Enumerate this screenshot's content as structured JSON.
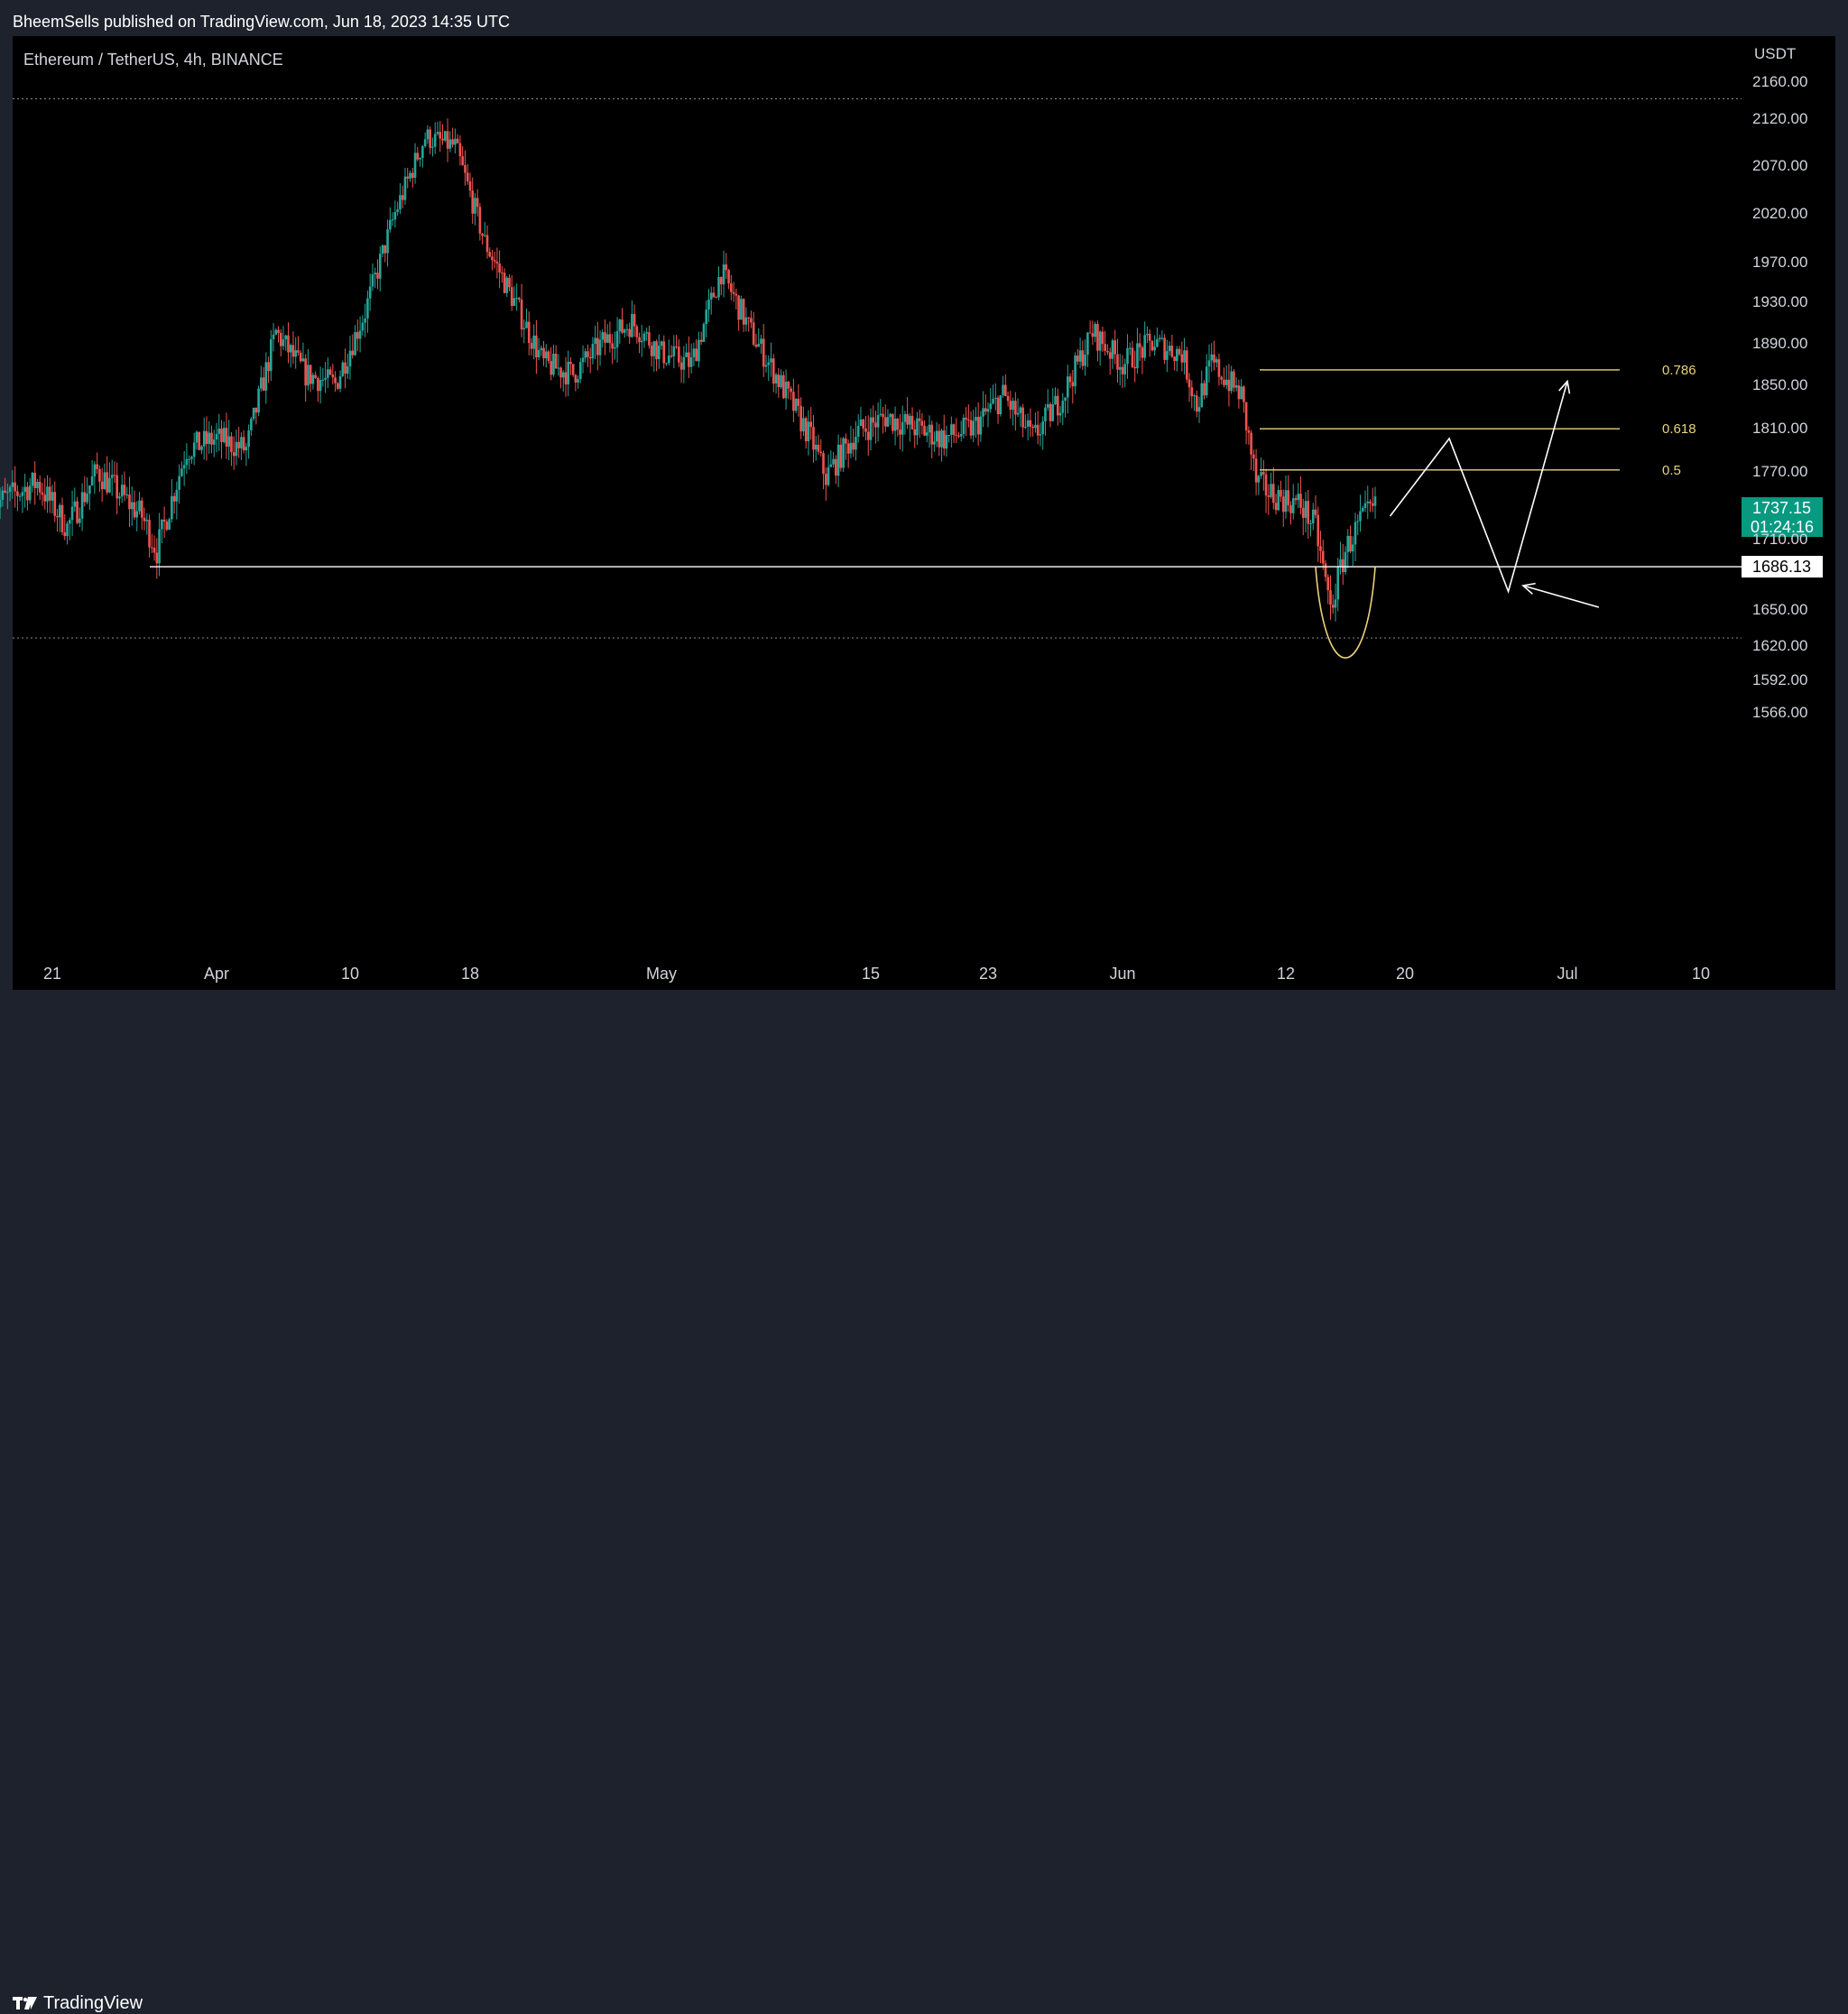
{
  "header": {
    "published_text": "BheemSells published on TradingView.com, Jun 18, 2023 14:35 UTC"
  },
  "symbol": {
    "name": "Ethereum / TetherUS, 4h, BINANCE",
    "currency": "USDT"
  },
  "footer": {
    "logo_text": "TradingView"
  },
  "colors": {
    "background": "#000000",
    "frame": "#1e222d",
    "up_candle": "#26a69a",
    "down_candle": "#ef5350",
    "fib_lines": "#e9d27a",
    "support_line": "#ffffff",
    "last_price_bg": "#089981"
  },
  "chart_data": {
    "type": "candlestick",
    "title": "Ethereum / TetherUS, 4h, BINANCE",
    "xlabel": "",
    "ylabel": "USDT",
    "ylim": [
      1545,
      2170
    ],
    "grid": false,
    "y_ticks": [
      "2160.00",
      "2120.00",
      "2070.00",
      "2020.00",
      "1970.00",
      "1930.00",
      "1890.00",
      "1850.00",
      "1810.00",
      "1770.00",
      "1710.00",
      "1650.00",
      "1620.00",
      "1592.00",
      "1566.00"
    ],
    "y_tick_values": [
      2160,
      2120,
      2070,
      2020,
      1970,
      1930,
      1890,
      1850,
      1810,
      1770,
      1710,
      1650,
      1620,
      1592,
      1566
    ],
    "x_ticks": [
      "21",
      "Apr",
      "10",
      "18",
      "May",
      "15",
      "23",
      "Jun",
      "12",
      "20",
      "Jul",
      "10"
    ],
    "x_tick_dates": [
      "2023-03-21",
      "2023-04-01",
      "2023-04-10",
      "2023-04-18",
      "2023-05-01",
      "2023-05-15",
      "2023-05-23",
      "2023-06-01",
      "2023-06-12",
      "2023-06-20",
      "2023-07-01",
      "2023-07-10"
    ],
    "last_price": {
      "value": 1737.15,
      "label": "1737.15",
      "countdown": "01:24:16"
    },
    "support_level": {
      "value": 1686.13,
      "label": "1686.13"
    },
    "range_high": 2141,
    "range_low": 1626,
    "fib_levels": [
      {
        "label": "0.5",
        "value": 1771
      },
      {
        "label": "0.618",
        "value": 1809
      },
      {
        "label": "0.786",
        "value": 1864
      }
    ],
    "price_path": [
      {
        "date": "2023-03-17",
        "price": 1740
      },
      {
        "date": "2023-03-20",
        "price": 1760
      },
      {
        "date": "2023-03-22",
        "price": 1720
      },
      {
        "date": "2023-03-24",
        "price": 1770
      },
      {
        "date": "2023-03-27",
        "price": 1730
      },
      {
        "date": "2023-03-28",
        "price": 1700
      },
      {
        "date": "2023-03-30",
        "price": 1790
      },
      {
        "date": "2023-04-01",
        "price": 1800
      },
      {
        "date": "2023-04-03",
        "price": 1790
      },
      {
        "date": "2023-04-05",
        "price": 1900
      },
      {
        "date": "2023-04-07",
        "price": 1860
      },
      {
        "date": "2023-04-09",
        "price": 1850
      },
      {
        "date": "2023-04-11",
        "price": 1920
      },
      {
        "date": "2023-04-13",
        "price": 2020
      },
      {
        "date": "2023-04-15",
        "price": 2100
      },
      {
        "date": "2023-04-17",
        "price": 2090
      },
      {
        "date": "2023-04-19",
        "price": 1990
      },
      {
        "date": "2023-04-21",
        "price": 1930
      },
      {
        "date": "2023-04-23",
        "price": 1870
      },
      {
        "date": "2023-04-25",
        "price": 1860
      },
      {
        "date": "2023-04-27",
        "price": 1890
      },
      {
        "date": "2023-04-29",
        "price": 1910
      },
      {
        "date": "2023-05-01",
        "price": 1880
      },
      {
        "date": "2023-05-03",
        "price": 1870
      },
      {
        "date": "2023-05-05",
        "price": 1960
      },
      {
        "date": "2023-05-07",
        "price": 1900
      },
      {
        "date": "2023-05-09",
        "price": 1850
      },
      {
        "date": "2023-05-11",
        "price": 1800
      },
      {
        "date": "2023-05-12",
        "price": 1765
      },
      {
        "date": "2023-05-14",
        "price": 1805
      },
      {
        "date": "2023-05-16",
        "price": 1820
      },
      {
        "date": "2023-05-18",
        "price": 1810
      },
      {
        "date": "2023-05-20",
        "price": 1800
      },
      {
        "date": "2023-05-22",
        "price": 1810
      },
      {
        "date": "2023-05-24",
        "price": 1840
      },
      {
        "date": "2023-05-26",
        "price": 1800
      },
      {
        "date": "2023-05-28",
        "price": 1840
      },
      {
        "date": "2023-05-30",
        "price": 1900
      },
      {
        "date": "2023-06-01",
        "price": 1870
      },
      {
        "date": "2023-06-03",
        "price": 1890
      },
      {
        "date": "2023-06-05",
        "price": 1880
      },
      {
        "date": "2023-06-06",
        "price": 1830
      },
      {
        "date": "2023-06-07",
        "price": 1870
      },
      {
        "date": "2023-06-09",
        "price": 1840
      },
      {
        "date": "2023-06-10",
        "price": 1760
      },
      {
        "date": "2023-06-11",
        "price": 1750
      },
      {
        "date": "2023-06-13",
        "price": 1740
      },
      {
        "date": "2023-06-14",
        "price": 1720
      },
      {
        "date": "2023-06-15",
        "price": 1650
      },
      {
        "date": "2023-06-16",
        "price": 1700
      },
      {
        "date": "2023-06-17",
        "price": 1725
      },
      {
        "date": "2023-06-18",
        "price": 1737
      }
    ],
    "projection_path": [
      {
        "date": "2023-06-19",
        "price": 1730
      },
      {
        "date": "2023-06-23",
        "price": 1800
      },
      {
        "date": "2023-06-27",
        "price": 1665
      },
      {
        "date": "2023-07-01",
        "price": 1853
      }
    ],
    "arrow_hint": {
      "date": "2023-06-28",
      "price": 1670
    },
    "cup_curve": {
      "start_date": "2023-06-14",
      "end_date": "2023-06-18",
      "top_price": 1686,
      "bottom_price": 1618
    }
  }
}
